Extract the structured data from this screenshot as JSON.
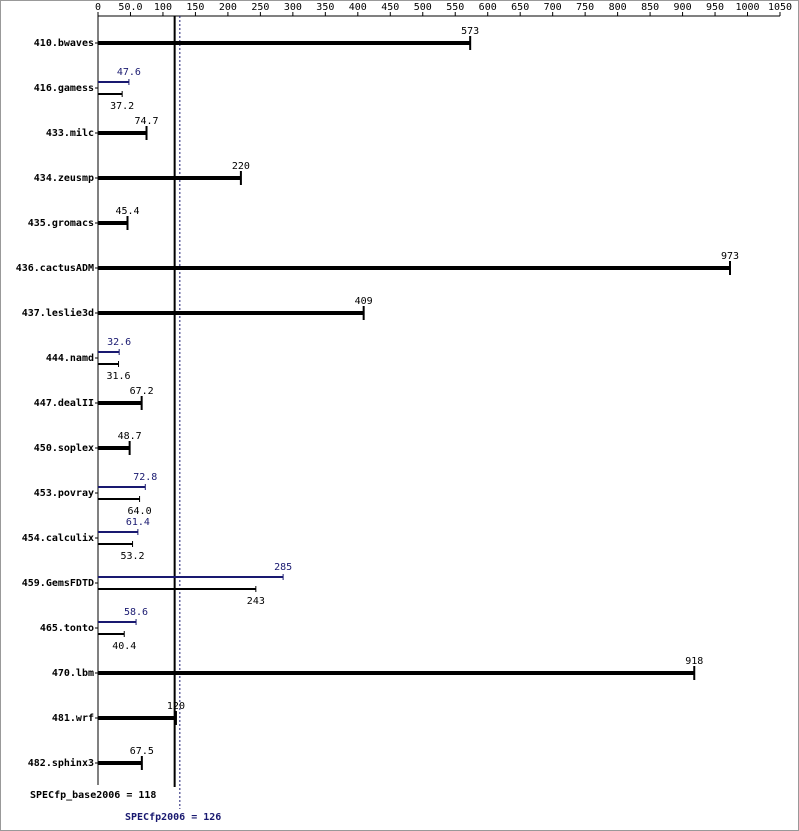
{
  "chart_data": {
    "type": "bar",
    "categories": [
      "410.bwaves",
      "416.gamess",
      "433.milc",
      "434.zeusmp",
      "435.gromacs",
      "436.cactusADM",
      "437.leslie3d",
      "444.namd",
      "447.dealII",
      "450.soplex",
      "453.povray",
      "454.calculix",
      "459.GemsFDTD",
      "465.tonto",
      "470.lbm",
      "481.wrf",
      "482.sphinx3"
    ],
    "series": [
      {
        "color": "#000000",
        "values": [
          573,
          37.2,
          74.7,
          220,
          45.4,
          973,
          409,
          31.6,
          67.2,
          48.7,
          64.0,
          53.2,
          243,
          40.4,
          918,
          120,
          67.5
        ],
        "value_labels": [
          "573",
          "37.2",
          "74.7",
          "220",
          "45.4",
          "973",
          "409",
          "31.6",
          "67.2",
          "48.7",
          "64.0",
          "53.2",
          "243",
          "40.4",
          "918",
          "120",
          "67.5"
        ]
      },
      {
        "color": "#191970",
        "values": [
          null,
          47.6,
          null,
          null,
          null,
          null,
          null,
          32.6,
          null,
          null,
          72.8,
          61.4,
          285,
          58.6,
          null,
          null,
          null
        ]
      }
    ],
    "xlim": [
      0,
      1050
    ],
    "xticks": [
      0,
      {
        "value": 50,
        "label": "50.0"
      },
      100,
      150,
      200,
      250,
      300,
      350,
      400,
      450,
      500,
      550,
      600,
      650,
      700,
      750,
      800,
      850,
      900,
      950,
      1000,
      1050
    ],
    "reference_lines": [
      {
        "label": "SPECfp_base2006 = 118",
        "value": 118,
        "color": "#000000"
      },
      {
        "label": "SPECfp2006 = 126",
        "value": 126,
        "color": "#191970"
      }
    ]
  }
}
